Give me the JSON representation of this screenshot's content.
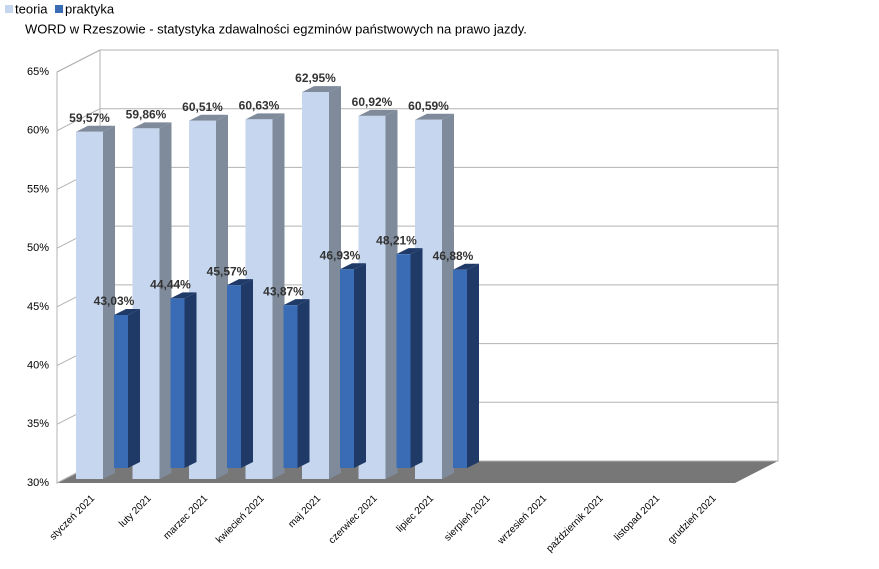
{
  "chart_data": {
    "type": "bar3d",
    "title": "WORD w Rzeszowie - statystyka zdawalności egzminów państwowych na prawo jazdy.",
    "categories": [
      "styczeń 2021",
      "luty 2021",
      "marzec 2021",
      "kwiecień 2021",
      "maj 2021",
      "czerwiec 2021",
      "lipiec 2021",
      "sierpień 2021",
      "wrzesień 2021",
      "październik 2021",
      "listopad 2021",
      "grudzień 2021"
    ],
    "series": [
      {
        "name": "teoria",
        "color": "#c5d6ee",
        "side": "#7f8b9b",
        "values": [
          59.57,
          59.86,
          60.51,
          60.63,
          62.95,
          60.92,
          60.59,
          null,
          null,
          null,
          null,
          null
        ],
        "value_labels": [
          "59,57%",
          "59,86%",
          "60,51%",
          "60,63%",
          "62,95%",
          "60,92%",
          "60,59%",
          null,
          null,
          null,
          null,
          null
        ]
      },
      {
        "name": "praktyka",
        "color": "#3a6cb5",
        "side": "#203a68",
        "values": [
          43.03,
          44.44,
          45.57,
          43.87,
          46.93,
          48.21,
          46.88,
          null,
          null,
          null,
          null,
          null
        ],
        "value_labels": [
          "43,03%",
          "44,44%",
          "45,57%",
          "43,87%",
          "46,93%",
          "48,21%",
          "46,88%",
          null,
          null,
          null,
          null,
          null
        ]
      }
    ],
    "ylim": [
      30,
      65
    ],
    "yticks": [
      {
        "value": 30,
        "label": "30%"
      },
      {
        "value": 35,
        "label": "35%"
      },
      {
        "value": 40,
        "label": "40%"
      },
      {
        "value": 45,
        "label": "45%"
      },
      {
        "value": 50,
        "label": "50%"
      },
      {
        "value": 55,
        "label": "55%"
      },
      {
        "value": 60,
        "label": "60%"
      },
      {
        "value": 65,
        "label": "65%"
      }
    ],
    "grid": true,
    "legend": "top-left"
  }
}
